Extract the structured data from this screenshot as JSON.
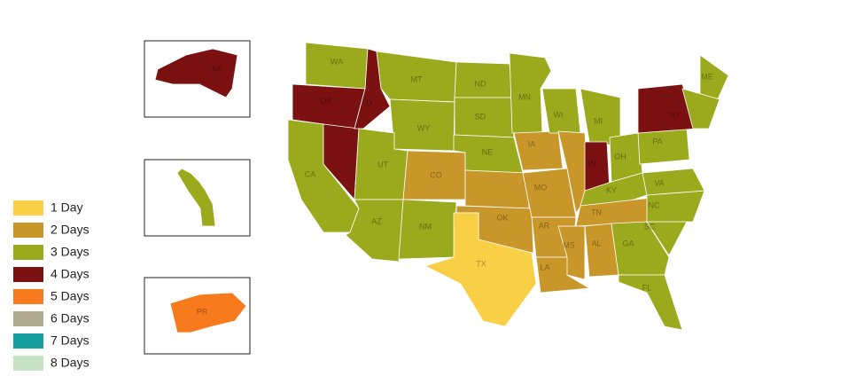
{
  "legend": [
    {
      "label": "1 Day",
      "color": "#f9cf45"
    },
    {
      "label": "2 Days",
      "color": "#c9962a"
    },
    {
      "label": "3 Days",
      "color": "#9ba91c"
    },
    {
      "label": "4 Days",
      "color": "#7b1111"
    },
    {
      "label": "5 Days",
      "color": "#f77a1c"
    },
    {
      "label": "6 Days",
      "color": "#b0aa8f"
    },
    {
      "label": "7 Days",
      "color": "#139e9c"
    },
    {
      "label": "8 Days",
      "color": "#c6e2c6"
    }
  ],
  "states": [
    {
      "label": "WA",
      "delivery": "3 Days"
    },
    {
      "label": "OR",
      "delivery": "4 Days"
    },
    {
      "label": "CA",
      "delivery": "3 Days"
    },
    {
      "label": null,
      "delivery": "4 Days"
    },
    {
      "label": "ID",
      "delivery": "4 Days"
    },
    {
      "label": "MT",
      "delivery": "3 Days"
    },
    {
      "label": "WY",
      "delivery": "3 Days"
    },
    {
      "label": "UT",
      "delivery": "3 Days"
    },
    {
      "label": "AZ",
      "delivery": "3 Days"
    },
    {
      "label": "CO",
      "delivery": "2 Days"
    },
    {
      "label": "NM",
      "delivery": "3 Days"
    },
    {
      "label": "ND",
      "delivery": "3 Days"
    },
    {
      "label": "SD",
      "delivery": "3 Days"
    },
    {
      "label": "NE",
      "delivery": "3 Days"
    },
    {
      "label": null,
      "delivery": "2 Days"
    },
    {
      "label": "OK",
      "delivery": "2 Days"
    },
    {
      "label": "TX",
      "delivery": "1 Day"
    },
    {
      "label": "MN",
      "delivery": "3 Days"
    },
    {
      "label": "IA",
      "delivery": "2 Days"
    },
    {
      "label": "MO",
      "delivery": "2 Days"
    },
    {
      "label": "AR",
      "delivery": "2 Days"
    },
    {
      "label": "LA",
      "delivery": "2 Days"
    },
    {
      "label": "WI",
      "delivery": "3 Days"
    },
    {
      "label": null,
      "delivery": "2 Days"
    },
    {
      "label": "MI",
      "delivery": "3 Days"
    },
    {
      "label": "IN",
      "delivery": "4 Days"
    },
    {
      "label": "OH",
      "delivery": "3 Days"
    },
    {
      "label": "KY",
      "delivery": "3 Days"
    },
    {
      "label": "TN",
      "delivery": "2 Days"
    },
    {
      "label": "MS",
      "delivery": "2 Days"
    },
    {
      "label": "AL",
      "delivery": "2 Days"
    },
    {
      "label": "GA",
      "delivery": "3 Days"
    },
    {
      "label": "FL",
      "delivery": "3 Days"
    },
    {
      "label": "SC",
      "delivery": "3 Days"
    },
    {
      "label": "NC",
      "delivery": "3 Days"
    },
    {
      "label": "VA",
      "delivery": "3 Days"
    },
    {
      "label": "PA",
      "delivery": "3 Days"
    },
    {
      "label": "NY",
      "delivery": "4 Days"
    },
    {
      "label": "ME",
      "delivery": "3 Days"
    },
    {
      "label": null,
      "delivery": "3 Days"
    },
    {
      "label": "AK",
      "delivery": "4 Days"
    },
    {
      "label": null,
      "delivery": "3 Days"
    },
    {
      "label": "PR",
      "delivery": "5 Days"
    }
  ]
}
